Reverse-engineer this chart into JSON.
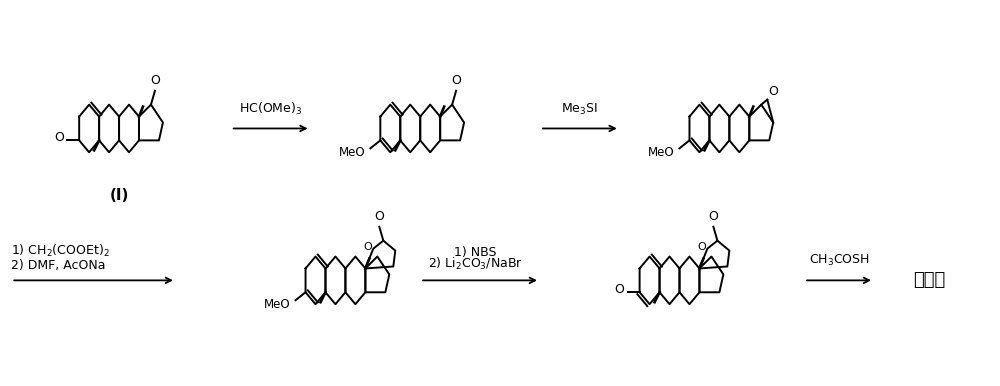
{
  "background_color": "#ffffff",
  "fig_width": 10.0,
  "fig_height": 3.86,
  "line_color": "#000000",
  "arrow1_label": "HC(OMe)$_3$",
  "arrow2_label": "Me$_3$SI",
  "arrow3_label_1": "1) CH$_2$(COOEt)$_2$",
  "arrow3_label_2": "2) DMF, AcONa",
  "arrow4_label_1": "1) NBS",
  "arrow4_label_2": "2) Li$_2$CO$_3$/NaBr",
  "arrow5_label": "CH$_3$COSH",
  "label_I": "(I)",
  "label_spiro": "螺内酯"
}
